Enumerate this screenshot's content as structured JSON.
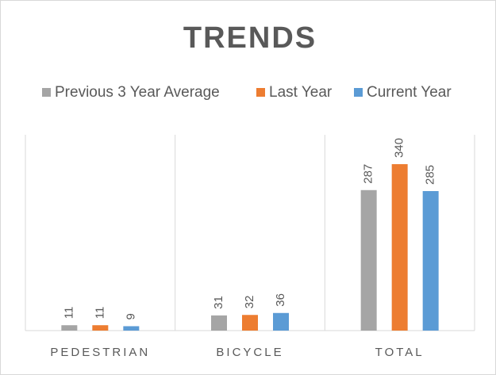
{
  "chart_data": {
    "type": "bar",
    "title": "TRENDS",
    "categories": [
      "PEDESTRIAN",
      "BICYCLE",
      "TOTAL"
    ],
    "series": [
      {
        "name": "Previous 3 Year Average",
        "color": "#a5a5a5",
        "values": [
          11,
          31,
          287
        ]
      },
      {
        "name": "Last Year",
        "color": "#ed7d31",
        "values": [
          11,
          32,
          340
        ]
      },
      {
        "name": "Current Year",
        "color": "#5b9bd5",
        "values": [
          9,
          36,
          285
        ]
      }
    ],
    "ylim": [
      0,
      400
    ]
  }
}
